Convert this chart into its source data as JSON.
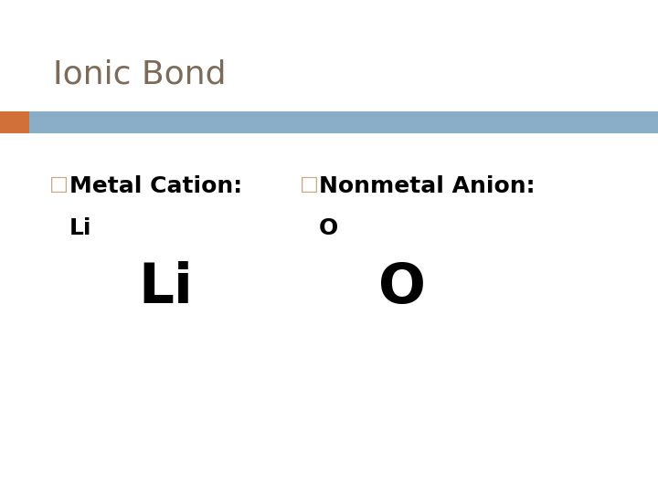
{
  "title": "Ionic Bond",
  "title_color": "#7B6B5A",
  "title_fontsize": 26,
  "background_color": "#ffffff",
  "divider_bar_color": "#8BAEC8",
  "divider_accent_color": "#D2703A",
  "bullet_color": "#C8A882",
  "bullet1_label": "Metal Cation:",
  "bullet1_sub": "Li",
  "bullet2_label": "Nonmetal Anion:",
  "bullet2_sub": "O",
  "large_li": "Li",
  "large_o": "O",
  "body_fontsize": 18,
  "sub_fontsize": 18,
  "large_fontsize": 44,
  "body_color": "#000000"
}
